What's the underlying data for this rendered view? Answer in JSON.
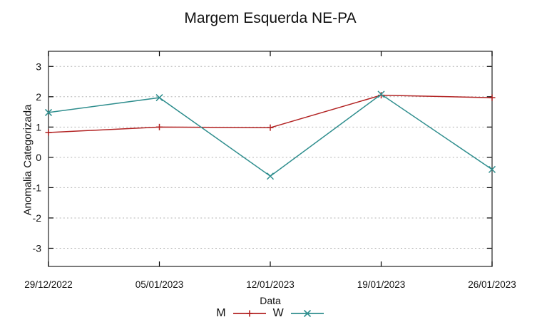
{
  "chart_data": {
    "type": "line",
    "title": "Margem Esquerda NE-PA",
    "xlabel": "Data",
    "ylabel": "Anomalia Categorizada",
    "categories": [
      "29/12/2022",
      "05/01/2023",
      "12/01/2023",
      "19/01/2023",
      "26/01/2023"
    ],
    "series": [
      {
        "name": "M",
        "color": "#b22222",
        "marker": "plus",
        "values": [
          0.82,
          1.0,
          0.98,
          2.05,
          1.97
        ]
      },
      {
        "name": "W",
        "color": "#2f8e8e",
        "marker": "cross",
        "values": [
          1.48,
          1.97,
          -0.62,
          2.08,
          -0.4
        ]
      }
    ],
    "yticks": [
      -3,
      -2,
      -1,
      0,
      1,
      2,
      3
    ],
    "ylim": [
      -3.6,
      3.5
    ],
    "grid": "horizontal-dotted",
    "grid_color": "#b3b3b3",
    "border_color": "#333333",
    "legend_position": "bottom-center"
  }
}
